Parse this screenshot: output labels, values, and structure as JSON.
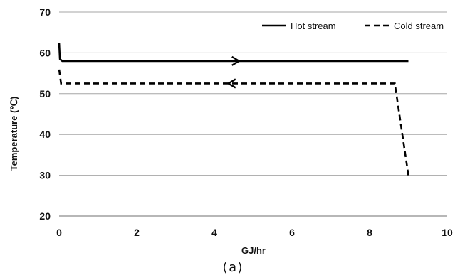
{
  "caption": "(a)",
  "chart_data": {
    "type": "line",
    "xlabel": "GJ/hr",
    "ylabel": "Temperature (℃)",
    "xlim": [
      0,
      10
    ],
    "ylim": [
      20,
      70
    ],
    "xticks": [
      "0",
      "2",
      "4",
      "6",
      "8",
      "10"
    ],
    "yticks": [
      "20",
      "30",
      "40",
      "50",
      "60",
      "70"
    ],
    "grid": "horizontal",
    "legend": "top-right",
    "series": [
      {
        "name": "Hot stream",
        "style": "solid",
        "direction": "right",
        "arrow_at_x": 4.6,
        "x": [
          0,
          0.02,
          0.08,
          9.0
        ],
        "y": [
          62.5,
          58.5,
          58.0,
          58.0
        ]
      },
      {
        "name": "Cold stream",
        "style": "dashed",
        "direction": "left",
        "arrow_at_x": 4.4,
        "x": [
          9.0,
          8.65,
          0.05,
          0.0
        ],
        "y": [
          30.0,
          52.5,
          52.5,
          56.0
        ]
      }
    ]
  }
}
